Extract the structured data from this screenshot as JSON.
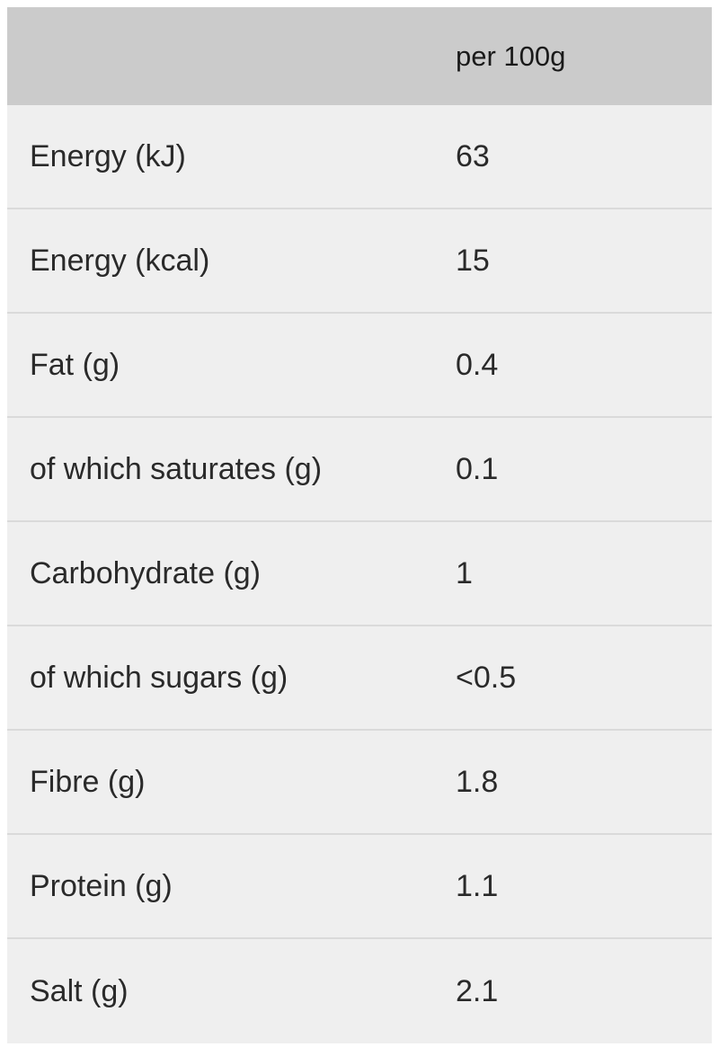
{
  "table": {
    "header": "per 100g",
    "rows": [
      [
        "Energy (kJ)",
        "63"
      ],
      [
        "Energy (kcal)",
        "15"
      ],
      [
        "Fat (g)",
        "0.4"
      ],
      [
        "of which saturates (g)",
        "0.1"
      ],
      [
        "Carbohydrate (g)",
        "1"
      ],
      [
        "of which sugars (g)",
        "<0.5"
      ],
      [
        "Fibre (g)",
        "1.8"
      ],
      [
        "Protein (g)",
        "1.1"
      ],
      [
        "Salt (g)",
        "2.1"
      ]
    ]
  }
}
